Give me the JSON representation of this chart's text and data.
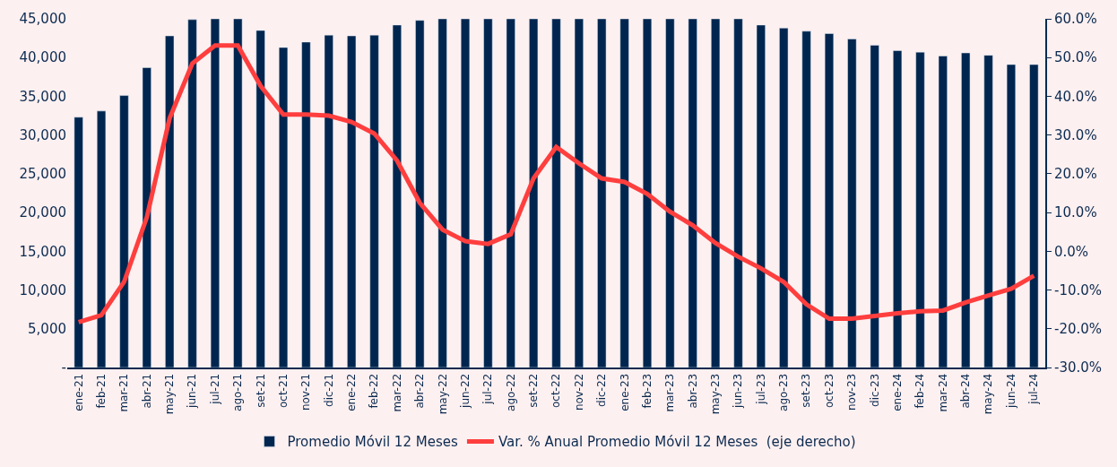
{
  "chart_data": {
    "type": "bar",
    "categories": [
      "ene-21",
      "feb-21",
      "mar-21",
      "abr-21",
      "may-21",
      "jun-21",
      "jul-21",
      "ago-21",
      "set-21",
      "oct-21",
      "nov-21",
      "dic-21",
      "ene-22",
      "feb-22",
      "mar-22",
      "abr-22",
      "may-22",
      "jun-22",
      "jul-22",
      "ago-22",
      "set-22",
      "oct-22",
      "nov-22",
      "dic-22",
      "ene-23",
      "feb-23",
      "mar-23",
      "abr-23",
      "may-23",
      "jun-23",
      "jul-23",
      "ago-23",
      "set-23",
      "oct-23",
      "nov-23",
      "dic-23",
      "ene-24",
      "feb-24",
      "mar-24",
      "abr-24",
      "may-24",
      "jun-24",
      "jul-24"
    ],
    "series": [
      {
        "name": "Promedio Móvil 12 Meses",
        "color": "#00264f",
        "values": [
          32300,
          33100,
          35100,
          38700,
          42800,
          44900,
          45000,
          45000,
          43500,
          41300,
          42000,
          42900,
          42800,
          42900,
          44200,
          44800,
          45000,
          45000,
          45000,
          45000,
          45000,
          45000,
          45000,
          45000,
          45000,
          45000,
          45000,
          45000,
          45000,
          45000,
          44200,
          43800,
          43400,
          43100,
          42400,
          41600,
          40900,
          40700,
          40200,
          40600,
          40300,
          39100,
          39100
        ]
      },
      {
        "name": "Var. % Anual Promedio Móvil 12 Meses  (eje derecho)",
        "type": "line",
        "axis": "y2",
        "color": "#ff3e3e",
        "values": [
          -18.3,
          -16.5,
          -7.9,
          8.8,
          34.3,
          48.5,
          53.1,
          53.1,
          42.7,
          35.3,
          35.3,
          35.0,
          33.4,
          30.4,
          23.4,
          12.5,
          5.6,
          2.6,
          1.9,
          4.4,
          18.8,
          26.9,
          22.7,
          18.8,
          17.9,
          14.8,
          10.2,
          6.7,
          2.1,
          -1.4,
          -4.4,
          -7.9,
          -13.7,
          -17.4,
          -17.4,
          -16.7,
          -16.0,
          -15.5,
          -15.3,
          -13.2,
          -11.4,
          -9.7,
          -6.3
        ]
      }
    ],
    "ylim": [
      0,
      45000
    ],
    "yticks": [
      {
        "value": 0,
        "label": "-"
      },
      {
        "value": 5000,
        "label": "5,000"
      },
      {
        "value": 10000,
        "label": "10,000"
      },
      {
        "value": 15000,
        "label": "15,000"
      },
      {
        "value": 20000,
        "label": "20,000"
      },
      {
        "value": 25000,
        "label": "25,000"
      },
      {
        "value": 30000,
        "label": "30,000"
      },
      {
        "value": 35000,
        "label": "35,000"
      },
      {
        "value": 40000,
        "label": "40,000"
      },
      {
        "value": 45000,
        "label": "45,000"
      }
    ],
    "y2lim": [
      -30,
      60
    ],
    "y2ticks": [
      {
        "value": -30,
        "label": "-30.0%"
      },
      {
        "value": -20,
        "label": "-20.0%"
      },
      {
        "value": -10,
        "label": "-10.0%"
      },
      {
        "value": 0,
        "label": "0.0%"
      },
      {
        "value": 10,
        "label": "10.0%"
      },
      {
        "value": 20,
        "label": "20.0%"
      },
      {
        "value": 30,
        "label": "30.0%"
      },
      {
        "value": 40,
        "label": "40.0%"
      },
      {
        "value": 50,
        "label": "50.0%"
      },
      {
        "value": 60,
        "label": "60.0%"
      }
    ],
    "grid": false,
    "legend": "bottom",
    "marker": "none",
    "line_style": "solid"
  }
}
